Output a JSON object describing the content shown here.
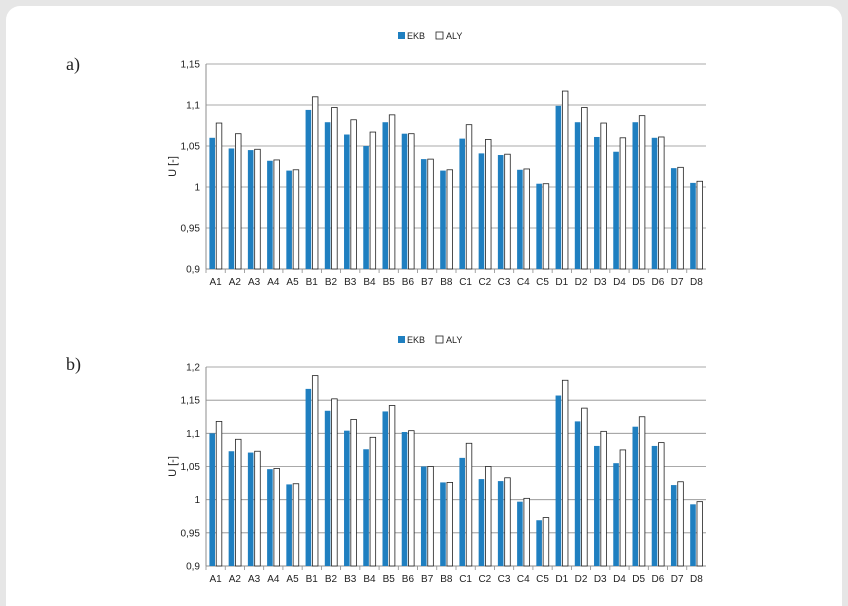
{
  "panels": [
    {
      "label": "a)"
    },
    {
      "label": "b)"
    }
  ],
  "colors": {
    "ekb": "#1f7fc0",
    "aly": "#ffffff"
  },
  "chart_data": [
    {
      "type": "bar",
      "categories": [
        "A1",
        "A2",
        "A3",
        "A4",
        "A5",
        "B1",
        "B2",
        "B3",
        "B4",
        "B5",
        "B6",
        "B7",
        "B8",
        "C1",
        "C2",
        "C3",
        "C4",
        "C5",
        "D1",
        "D2",
        "D3",
        "D4",
        "D5",
        "D6",
        "D7",
        "D8"
      ],
      "series": [
        {
          "name": "EKB",
          "values": [
            1.06,
            1.047,
            1.045,
            1.032,
            1.02,
            1.094,
            1.079,
            1.064,
            1.05,
            1.079,
            1.065,
            1.034,
            1.02,
            1.059,
            1.041,
            1.039,
            1.021,
            1.004,
            1.099,
            1.079,
            1.061,
            1.043,
            1.079,
            1.06,
            1.023,
            1.005
          ]
        },
        {
          "name": "ALY",
          "values": [
            1.078,
            1.065,
            1.046,
            1.033,
            1.021,
            1.11,
            1.097,
            1.082,
            1.067,
            1.088,
            1.065,
            1.034,
            1.021,
            1.076,
            1.058,
            1.04,
            1.022,
            1.004,
            1.117,
            1.097,
            1.078,
            1.06,
            1.087,
            1.061,
            1.024,
            1.007
          ]
        }
      ],
      "ylabel": "U [-]",
      "ylim": [
        0.9,
        1.15
      ],
      "yticks": [
        "0,9",
        "0,95",
        "1",
        "1,05",
        "1,1",
        "1,15"
      ],
      "grid": true,
      "legend": "top-center"
    },
    {
      "type": "bar",
      "categories": [
        "A1",
        "A2",
        "A3",
        "A4",
        "A5",
        "B1",
        "B2",
        "B3",
        "B4",
        "B5",
        "B6",
        "B7",
        "B8",
        "C1",
        "C2",
        "C3",
        "C4",
        "C5",
        "D1",
        "D2",
        "D3",
        "D4",
        "D5",
        "D6",
        "D7",
        "D8"
      ],
      "series": [
        {
          "name": "EKB",
          "values": [
            1.1,
            1.073,
            1.071,
            1.046,
            1.023,
            1.167,
            1.134,
            1.104,
            1.076,
            1.133,
            1.102,
            1.05,
            1.026,
            1.063,
            1.031,
            1.028,
            0.997,
            0.969,
            1.157,
            1.118,
            1.081,
            1.055,
            1.11,
            1.081,
            1.022,
            0.993
          ]
        },
        {
          "name": "ALY",
          "values": [
            1.118,
            1.091,
            1.073,
            1.047,
            1.024,
            1.187,
            1.152,
            1.121,
            1.094,
            1.142,
            1.104,
            1.05,
            1.026,
            1.085,
            1.05,
            1.033,
            1.002,
            0.973,
            1.18,
            1.138,
            1.103,
            1.075,
            1.125,
            1.086,
            1.027,
            0.997
          ]
        }
      ],
      "ylabel": "U [-]",
      "ylim": [
        0.9,
        1.2
      ],
      "yticks": [
        "0,9",
        "0,95",
        "1",
        "1,05",
        "1,1",
        "1,15",
        "1,2"
      ],
      "grid": true,
      "legend": "top-center"
    }
  ]
}
